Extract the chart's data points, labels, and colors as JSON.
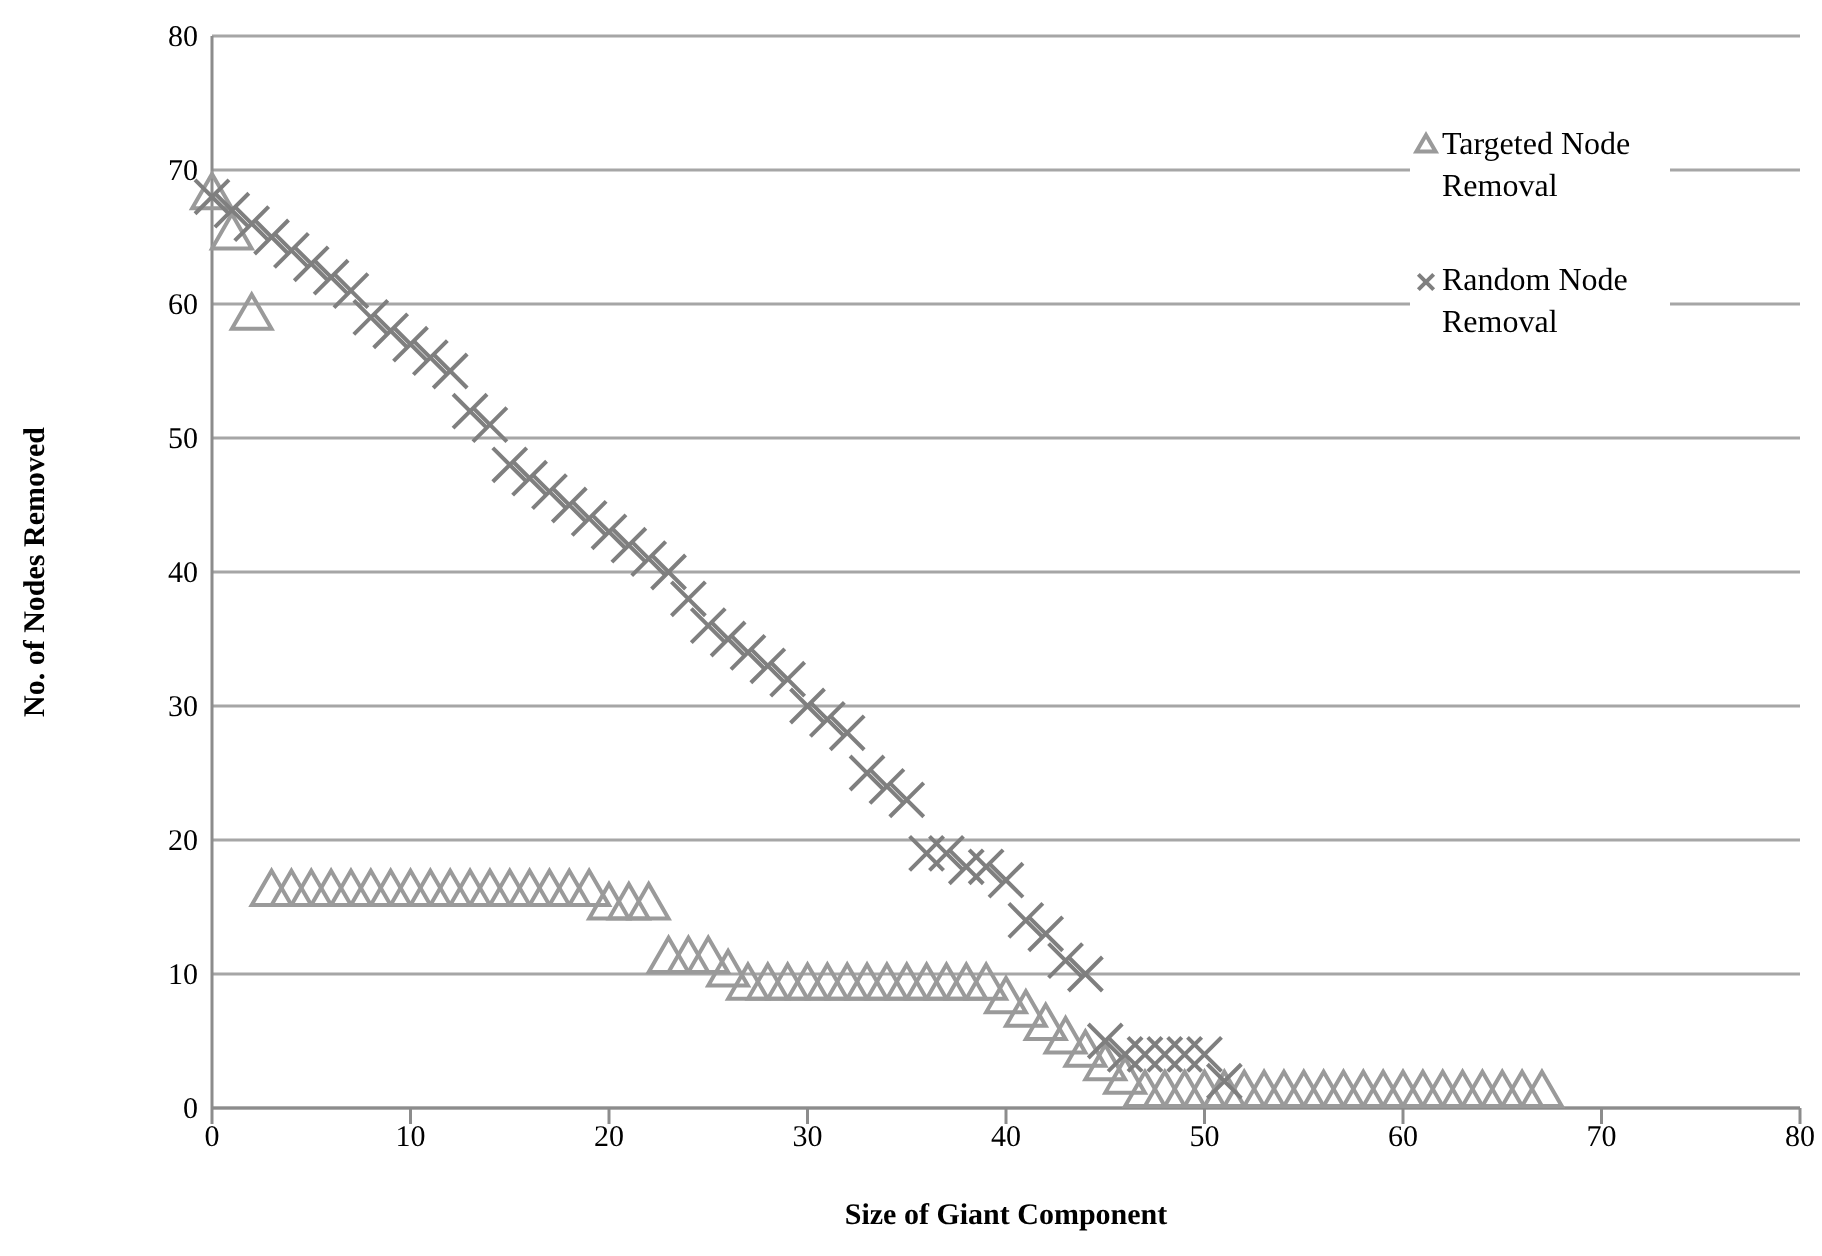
{
  "chart_data": {
    "type": "scatter",
    "xlabel": "Size of Giant Component",
    "ylabel": "No. of Nodes Removed",
    "xlim": [
      0,
      80
    ],
    "xticks": [
      0,
      10,
      20,
      30,
      40,
      50,
      60,
      70,
      80
    ],
    "ylim": [
      0,
      80
    ],
    "yticks": [
      0,
      10,
      20,
      30,
      40,
      50,
      60,
      70,
      80
    ],
    "grid": "y",
    "legend": "top right",
    "series": [
      {
        "name": "Targeted Node Removal",
        "color": "#9a9a9a",
        "marker": "triangle",
        "x": [
          0,
          1,
          2,
          3,
          4,
          5,
          6,
          7,
          8,
          9,
          10,
          11,
          12,
          13,
          14,
          15,
          16,
          17,
          18,
          19,
          20,
          21,
          22,
          23,
          24,
          25,
          26,
          27,
          28,
          29,
          30,
          31,
          32,
          33,
          34,
          35,
          36,
          37,
          38,
          39,
          40,
          41,
          42,
          43,
          44,
          45,
          46,
          47,
          48,
          49,
          50,
          51,
          52,
          53,
          54,
          55,
          56,
          57,
          58,
          59,
          60,
          61,
          62,
          63,
          64,
          65,
          66,
          67
        ],
        "values": [
          68,
          65,
          59,
          16,
          16,
          16,
          16,
          16,
          16,
          16,
          16,
          16,
          16,
          16,
          16,
          16,
          16,
          16,
          16,
          16,
          15,
          15,
          15,
          11,
          11,
          11,
          10,
          9,
          9,
          9,
          9,
          9,
          9,
          9,
          9,
          9,
          9,
          9,
          9,
          9,
          8,
          7,
          6,
          5,
          4,
          3,
          2,
          1,
          1,
          1,
          1,
          1,
          1,
          1,
          1,
          1,
          1,
          1,
          1,
          1,
          1,
          1,
          1,
          1,
          1,
          1,
          1,
          1
        ]
      },
      {
        "name": "Random Node Removal",
        "color": "#7f7f7f",
        "marker": "cross",
        "x": [
          0,
          1,
          2,
          3,
          4,
          5,
          6,
          7,
          8,
          9,
          10,
          11,
          12,
          13,
          14,
          15,
          16,
          17,
          18,
          19,
          20,
          21,
          22,
          23,
          24,
          25,
          26,
          27,
          28,
          29,
          30,
          31,
          32,
          33,
          34,
          35,
          36,
          37,
          38,
          39,
          40,
          41,
          42,
          43,
          44,
          45,
          46,
          47,
          48,
          49,
          50,
          51
        ],
        "values": [
          68,
          67,
          66,
          65,
          64,
          63,
          62,
          61,
          59,
          58,
          57,
          56,
          55,
          52,
          51,
          48,
          47,
          46,
          45,
          44,
          43,
          42,
          41,
          40,
          38,
          36,
          35,
          34,
          33,
          32,
          30,
          29,
          28,
          25,
          24,
          23,
          19,
          19,
          18,
          18,
          17,
          14,
          13,
          11,
          10,
          5,
          4,
          4,
          4,
          4,
          4,
          2
        ]
      }
    ]
  }
}
